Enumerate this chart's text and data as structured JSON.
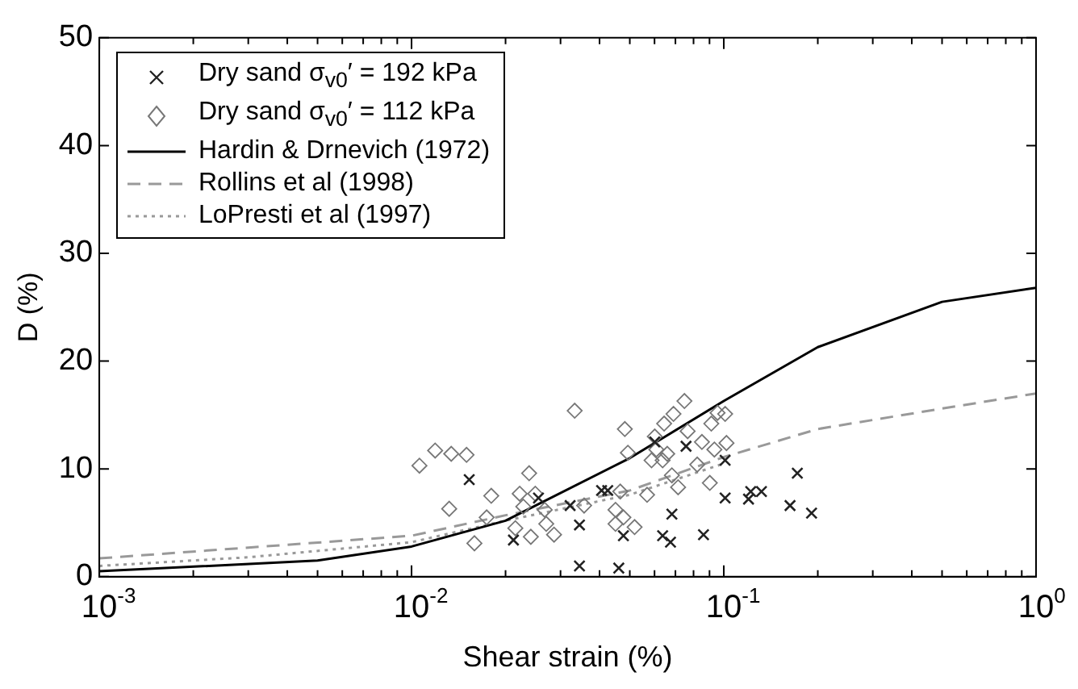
{
  "chart_data": {
    "type": "scatter",
    "xlabel": "Shear strain (%)",
    "ylabel": "D (%)",
    "log": "x",
    "legend": "top left",
    "xlim": [
      0.001,
      1
    ],
    "ylim": [
      0,
      50
    ],
    "xticks": [
      {
        "value": 0.001,
        "label": "10$^{-3}$"
      },
      {
        "value": 0.002,
        "label": null
      },
      {
        "value": 0.003,
        "label": null
      },
      {
        "value": 0.004,
        "label": null
      },
      {
        "value": 0.005,
        "label": null
      },
      {
        "value": 0.006,
        "label": null
      },
      {
        "value": 0.007,
        "label": null
      },
      {
        "value": 0.008,
        "label": null
      },
      {
        "value": 0.009,
        "label": null
      },
      {
        "value": 0.01,
        "label": "10$^{-2}$"
      },
      {
        "value": 0.02,
        "label": null
      },
      {
        "value": 0.03,
        "label": null
      },
      {
        "value": 0.04,
        "label": null
      },
      {
        "value": 0.05,
        "label": null
      },
      {
        "value": 0.06,
        "label": null
      },
      {
        "value": 0.07,
        "label": null
      },
      {
        "value": 0.08,
        "label": null
      },
      {
        "value": 0.09,
        "label": null
      },
      {
        "value": 0.1,
        "label": "10$^{-1}$"
      },
      {
        "value": 0.2,
        "label": null
      },
      {
        "value": 0.3,
        "label": null
      },
      {
        "value": 0.4,
        "label": null
      },
      {
        "value": 0.5,
        "label": null
      },
      {
        "value": 0.6,
        "label": null
      },
      {
        "value": 0.7,
        "label": null
      },
      {
        "value": 0.8,
        "label": null
      },
      {
        "value": 0.9,
        "label": null
      },
      {
        "value": 1,
        "label": "10$^{0}$"
      }
    ],
    "yticks": [
      0,
      10,
      20,
      30,
      40,
      50
    ],
    "series": [
      {
        "name": "Dry sand σ$_{v0}$′ = 192 kPa",
        "type": "scatter",
        "marker": "cross",
        "color": "#222222",
        "x": [
          0.0153,
          0.0212,
          0.0255,
          0.0322,
          0.0345,
          0.0345,
          0.0406,
          0.0461,
          0.0477,
          0.0637,
          0.0675,
          0.0682,
          0.0861,
          0.101,
          0.12,
          0.122,
          0.132,
          0.163,
          0.191,
          0.172,
          0.0757,
          0.0601,
          0.101,
          0.0425
        ],
        "values": [
          9.0,
          3.4,
          7.3,
          6.6,
          4.8,
          1.0,
          8.0,
          0.8,
          3.8,
          3.8,
          3.2,
          5.8,
          3.9,
          7.3,
          7.2,
          7.9,
          7.9,
          6.6,
          5.9,
          9.6,
          12.1,
          12.5,
          10.8,
          8.0
        ]
      },
      {
        "name": "Dry sand σ$_{v0}$′ = 112 kPa",
        "type": "scatter",
        "marker": "diamond",
        "color": "#777777",
        "x": [
          0.0106,
          0.0119,
          0.0134,
          0.015,
          0.0132,
          0.018,
          0.0159,
          0.0174,
          0.0222,
          0.0238,
          0.0249,
          0.0228,
          0.0215,
          0.0241,
          0.027,
          0.0286,
          0.0333,
          0.0357,
          0.0267,
          0.0482,
          0.0493,
          0.045,
          0.0477,
          0.045,
          0.0518,
          0.0466,
          0.0568,
          0.0601,
          0.0644,
          0.069,
          0.0748,
          0.0766,
          0.0851,
          0.0955,
          0.101,
          0.102,
          0.0933,
          0.0822,
          0.0902,
          0.0682,
          0.0637,
          0.0714,
          0.0608,
          0.0587,
          0.0659,
          0.0912
        ],
        "values": [
          10.3,
          11.7,
          11.4,
          11.3,
          6.3,
          7.5,
          3.1,
          5.5,
          7.7,
          9.6,
          7.7,
          6.5,
          4.5,
          3.7,
          4.9,
          3.9,
          15.4,
          6.6,
          6.2,
          13.7,
          11.5,
          6.2,
          5.5,
          4.9,
          4.6,
          7.9,
          7.6,
          13.0,
          14.2,
          15.1,
          16.3,
          13.5,
          12.5,
          15.2,
          15.1,
          12.4,
          11.8,
          10.4,
          8.7,
          9.4,
          10.8,
          8.3,
          11.8,
          10.8,
          11.4,
          14.2
        ]
      },
      {
        "name": "Hardin & Drnevich (1972)",
        "type": "line",
        "marker": "none",
        "line_style": "solid",
        "color": "#000000",
        "x": [
          0.001,
          0.005,
          0.01,
          0.02,
          0.05,
          0.1,
          0.2,
          0.5,
          1
        ],
        "values": [
          0.5,
          1.5,
          2.8,
          5.2,
          11.0,
          16.3,
          21.3,
          25.5,
          26.8
        ]
      },
      {
        "name": "Rollins et al (1998)",
        "type": "line",
        "marker": "none",
        "line_style": "dashed",
        "color": "#999999",
        "x": [
          0.001,
          0.01,
          0.02,
          0.05,
          0.1,
          0.2,
          0.5,
          1
        ],
        "values": [
          1.7,
          3.8,
          5.7,
          8.0,
          11.1,
          13.7,
          15.6,
          17.0
        ]
      },
      {
        "name": "LoPresti et al (1997)",
        "type": "line",
        "marker": "none",
        "line_style": "dotted",
        "color": "#999999",
        "x": [
          0.001,
          0.003,
          0.01,
          0.02,
          0.05,
          0.1
        ],
        "values": [
          1.0,
          1.8,
          3.2,
          5.2,
          7.6,
          10.5
        ]
      }
    ]
  }
}
